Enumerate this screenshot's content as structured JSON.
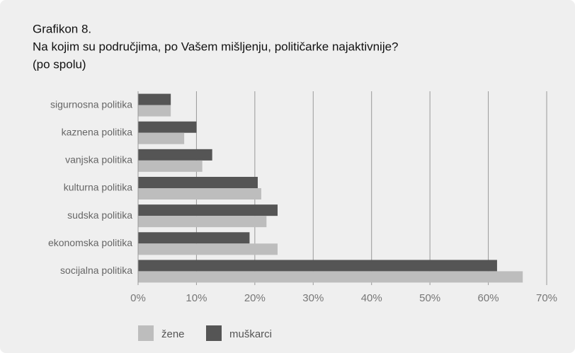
{
  "chart_data": {
    "type": "hbar",
    "title": "Grafikon 8.",
    "subtitle": "Na kojim su područjima, po Vašem mišljenju, političarke najaktivnije?",
    "note": "(po spolu)",
    "categories": [
      "sigurnosna politika",
      "kaznena politika",
      "vanjska politika",
      "kulturna politika",
      "sudska politika",
      "ekonomska politika",
      "socijalna politika"
    ],
    "series": [
      {
        "name": "muškarci",
        "color": "#555555",
        "values": [
          5.6,
          10.0,
          12.7,
          20.5,
          23.9,
          19.1,
          61.5
        ]
      },
      {
        "name": "žene",
        "color": "#bdbdbd",
        "values": [
          5.6,
          7.9,
          11.0,
          21.1,
          22.0,
          23.9,
          65.9
        ]
      }
    ],
    "xlim": [
      0,
      70
    ],
    "xticks": [
      {
        "value": 0,
        "label": "0%"
      },
      {
        "value": 10,
        "label": "10%"
      },
      {
        "value": 20,
        "label": "20%"
      },
      {
        "value": 30,
        "label": "30%"
      },
      {
        "value": 40,
        "label": "40%"
      },
      {
        "value": 50,
        "label": "50%"
      },
      {
        "value": 60,
        "label": "60%"
      },
      {
        "value": 70,
        "label": "70%"
      }
    ],
    "grid": true,
    "legend_order": [
      "žene",
      "muškarci"
    ]
  }
}
